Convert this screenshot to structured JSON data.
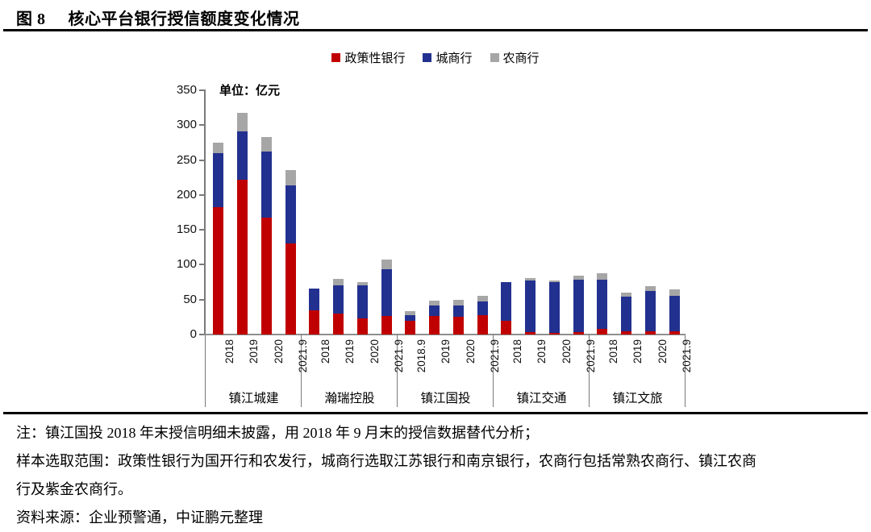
{
  "header": {
    "figure_label": "图 8",
    "title": "核心平台银行授信额度变化情况"
  },
  "chart_data": {
    "type": "bar",
    "stacked": true,
    "title": "核心平台银行授信额度变化情况",
    "unit_label": "单位：亿元",
    "xlabel": "",
    "ylabel": "",
    "ylim": [
      0,
      350
    ],
    "ytick_step": 50,
    "yticks": [
      0,
      50,
      100,
      150,
      200,
      250,
      300,
      350
    ],
    "grid": false,
    "legend_position": "top",
    "legend": [
      {
        "name": "政策性银行",
        "color": "#C00000"
      },
      {
        "name": "城商行",
        "color": "#22318F"
      },
      {
        "name": "农商行",
        "color": "#A6A6A6"
      }
    ],
    "groups": [
      {
        "name": "镇江城建",
        "bars": [
          {
            "x": "2018",
            "values": [
              182,
              78,
              15
            ]
          },
          {
            "x": "2019",
            "values": [
              222,
              69,
              27
            ]
          },
          {
            "x": "2020",
            "values": [
              168,
              94,
              21
            ]
          },
          {
            "x": "2021.9",
            "values": [
              131,
              83,
              22
            ]
          }
        ]
      },
      {
        "name": "瀚瑞控股",
        "bars": [
          {
            "x": "2018",
            "values": [
              35,
              31,
              0
            ]
          },
          {
            "x": "2019",
            "values": [
              30,
              40,
              10
            ]
          },
          {
            "x": "2020",
            "values": [
              23,
              48,
              4
            ]
          },
          {
            "x": "2021.9",
            "values": [
              27,
              67,
              14
            ]
          }
        ]
      },
      {
        "name": "镇江国投",
        "bars": [
          {
            "x": "2018.9",
            "values": [
              20,
              8,
              6
            ]
          },
          {
            "x": "2019",
            "values": [
              27,
              15,
              7
            ]
          },
          {
            "x": "2020",
            "values": [
              25,
              17,
              8
            ]
          },
          {
            "x": "2021.9",
            "values": [
              28,
              19,
              8
            ]
          }
        ]
      },
      {
        "name": "镇江交通",
        "bars": [
          {
            "x": "2018",
            "values": [
              20,
              55,
              0
            ]
          },
          {
            "x": "2019",
            "values": [
              3,
              74,
              4
            ]
          },
          {
            "x": "2020",
            "values": [
              2,
              73,
              2
            ]
          },
          {
            "x": "2021.9",
            "values": [
              3,
              76,
              5
            ]
          }
        ]
      },
      {
        "name": "镇江文旅",
        "bars": [
          {
            "x": "2018",
            "values": [
              8,
              71,
              9
            ]
          },
          {
            "x": "2019",
            "values": [
              5,
              49,
              6
            ]
          },
          {
            "x": "2020",
            "values": [
              5,
              57,
              7
            ]
          },
          {
            "x": "2021.9",
            "values": [
              5,
              50,
              10
            ]
          }
        ]
      }
    ]
  },
  "notes": [
    "注：镇江国投 2018 年末授信明细未披露，用 2018 年 9 月末的授信数据替代分析；",
    "样本选取范围：政策性银行为国开行和农发行，城商行选取江苏银行和南京银行，农商行包括常熟农商行、镇江农商",
    "行及紫金农商行。"
  ],
  "source": "资料来源：企业预警通，中证鹏元整理"
}
